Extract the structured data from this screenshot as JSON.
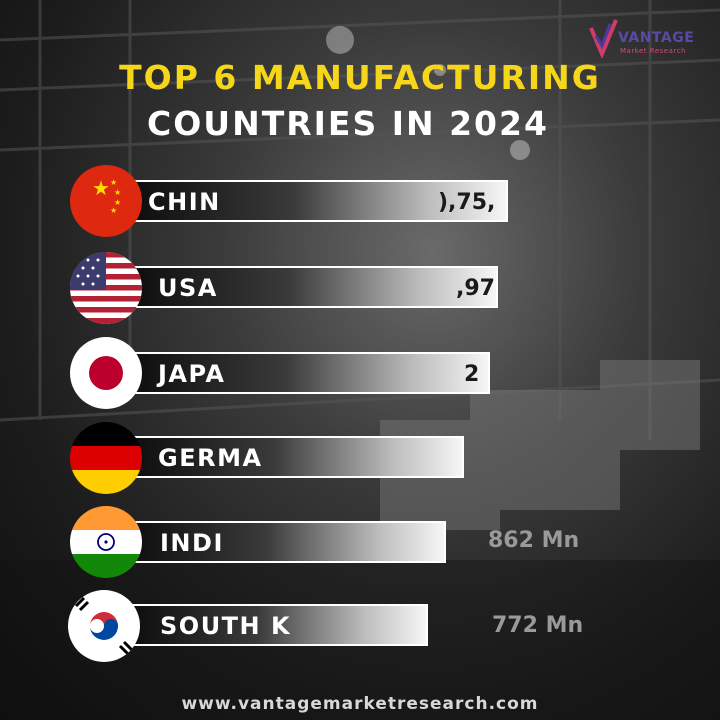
{
  "brand": {
    "name": "VANTAGE",
    "tagline": "Market Research"
  },
  "title": {
    "line1": "TOP 6 MANUFACTURING",
    "line2": "COUNTRIES IN 2024"
  },
  "bars": [
    {
      "country": "CHIN",
      "value": "),75,",
      "flag": "china-flag"
    },
    {
      "country": "USA",
      "value": ",97",
      "flag": "usa-flag"
    },
    {
      "country": "JAPA",
      "value": "2",
      "flag": "japan-flag"
    },
    {
      "country": "GERMA",
      "value": "",
      "flag": "germany-flag"
    },
    {
      "country": "INDI",
      "value": "862 Mn",
      "flag": "india-flag"
    },
    {
      "country": "SOUTH K",
      "value": "772 Mn",
      "flag": "south-korea-flag"
    }
  ],
  "footer": {
    "url": "www.vantagemarketresearch.com"
  }
}
